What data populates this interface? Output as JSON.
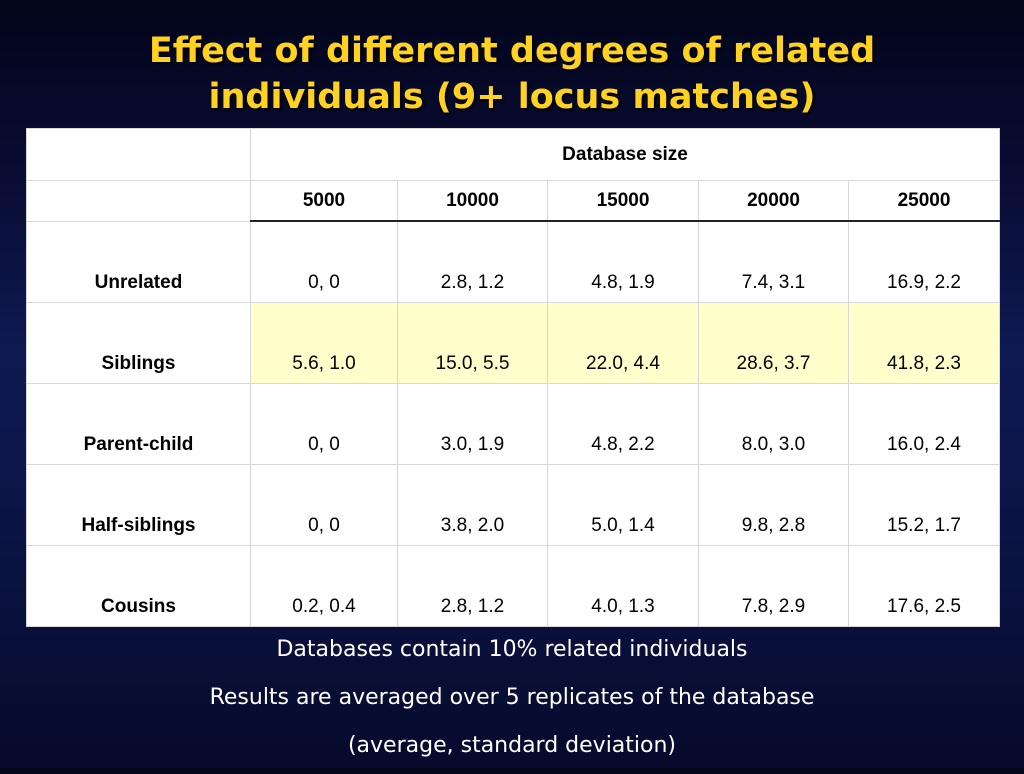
{
  "slide": {
    "title_line1": "Effect of different degrees of related",
    "title_line2": "individuals (9+ locus matches)"
  },
  "table": {
    "group_header": "Database size",
    "columns": [
      "5000",
      "10000",
      "15000",
      "20000",
      "25000"
    ],
    "rows": [
      {
        "label": "Unrelated",
        "cells": [
          "0, 0",
          "2.8, 1.2",
          "4.8, 1.9",
          "7.4, 3.1",
          "16.9, 2.2"
        ]
      },
      {
        "label": "Siblings",
        "cells": [
          "5.6, 1.0",
          "15.0, 5.5",
          "22.0, 4.4",
          "28.6, 3.7",
          "41.8, 2.3"
        ]
      },
      {
        "label": "Parent-child",
        "cells": [
          "0, 0",
          "3.0, 1.9",
          "4.8, 2.2",
          "8.0, 3.0",
          "16.0, 2.4"
        ]
      },
      {
        "label": "Half-siblings",
        "cells": [
          "0, 0",
          "3.8, 2.0",
          "5.0, 1.4",
          "9.8, 2.8",
          "15.2, 1.7"
        ]
      },
      {
        "label": "Cousins",
        "cells": [
          "0.2, 0.4",
          "2.8, 1.2",
          "4.0, 1.3",
          "7.8, 2.9",
          "17.6, 2.5"
        ]
      }
    ]
  },
  "notes": [
    "Databases contain 10% related individuals",
    "Results are averaged over 5 replicates of the database",
    "(average, standard deviation)"
  ],
  "colors": {
    "title": "#ffd21f",
    "highlight_row": "#ffffcc",
    "background": "#0a0e38"
  }
}
